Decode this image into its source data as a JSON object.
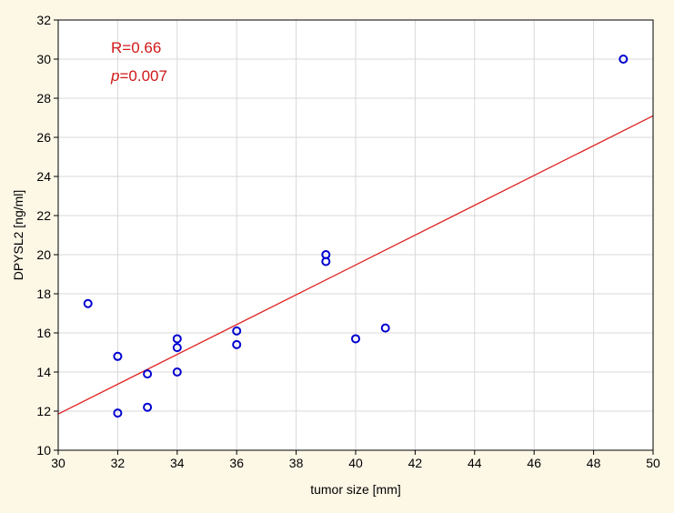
{
  "chart_data": {
    "type": "scatter",
    "title": "",
    "xlabel": "tumor size [mm]",
    "ylabel": "DPYSL2 [ng/ml]",
    "xlim": [
      30,
      50
    ],
    "ylim": [
      10,
      32
    ],
    "xticks": [
      30,
      32,
      34,
      36,
      38,
      40,
      42,
      44,
      46,
      48,
      50
    ],
    "yticks": [
      10,
      12,
      14,
      16,
      18,
      20,
      22,
      24,
      26,
      28,
      30,
      32
    ],
    "grid": true,
    "points": [
      {
        "x": 31,
        "y": 17.5
      },
      {
        "x": 32,
        "y": 14.8
      },
      {
        "x": 32,
        "y": 11.9
      },
      {
        "x": 33,
        "y": 13.9
      },
      {
        "x": 33,
        "y": 12.2
      },
      {
        "x": 34,
        "y": 15.7
      },
      {
        "x": 34,
        "y": 15.25
      },
      {
        "x": 34,
        "y": 14.0
      },
      {
        "x": 36,
        "y": 16.1
      },
      {
        "x": 36,
        "y": 15.4
      },
      {
        "x": 39,
        "y": 20.0
      },
      {
        "x": 39,
        "y": 19.65
      },
      {
        "x": 40,
        "y": 15.7
      },
      {
        "x": 41,
        "y": 16.25
      },
      {
        "x": 49,
        "y": 30.0
      }
    ],
    "fit_line": {
      "x": [
        30,
        50
      ],
      "y": [
        11.85,
        27.1
      ]
    },
    "annotations": {
      "r_text": "R=0.66",
      "p_symbol": "p",
      "p_value": "=0.007"
    },
    "colors": {
      "points": "#0000d0",
      "fit_line": "#e02020",
      "annotation": "#d01818",
      "grid": "#d8d8d8",
      "plot_bg": "#ffffff",
      "page_bg": "#fdf7e6"
    }
  }
}
